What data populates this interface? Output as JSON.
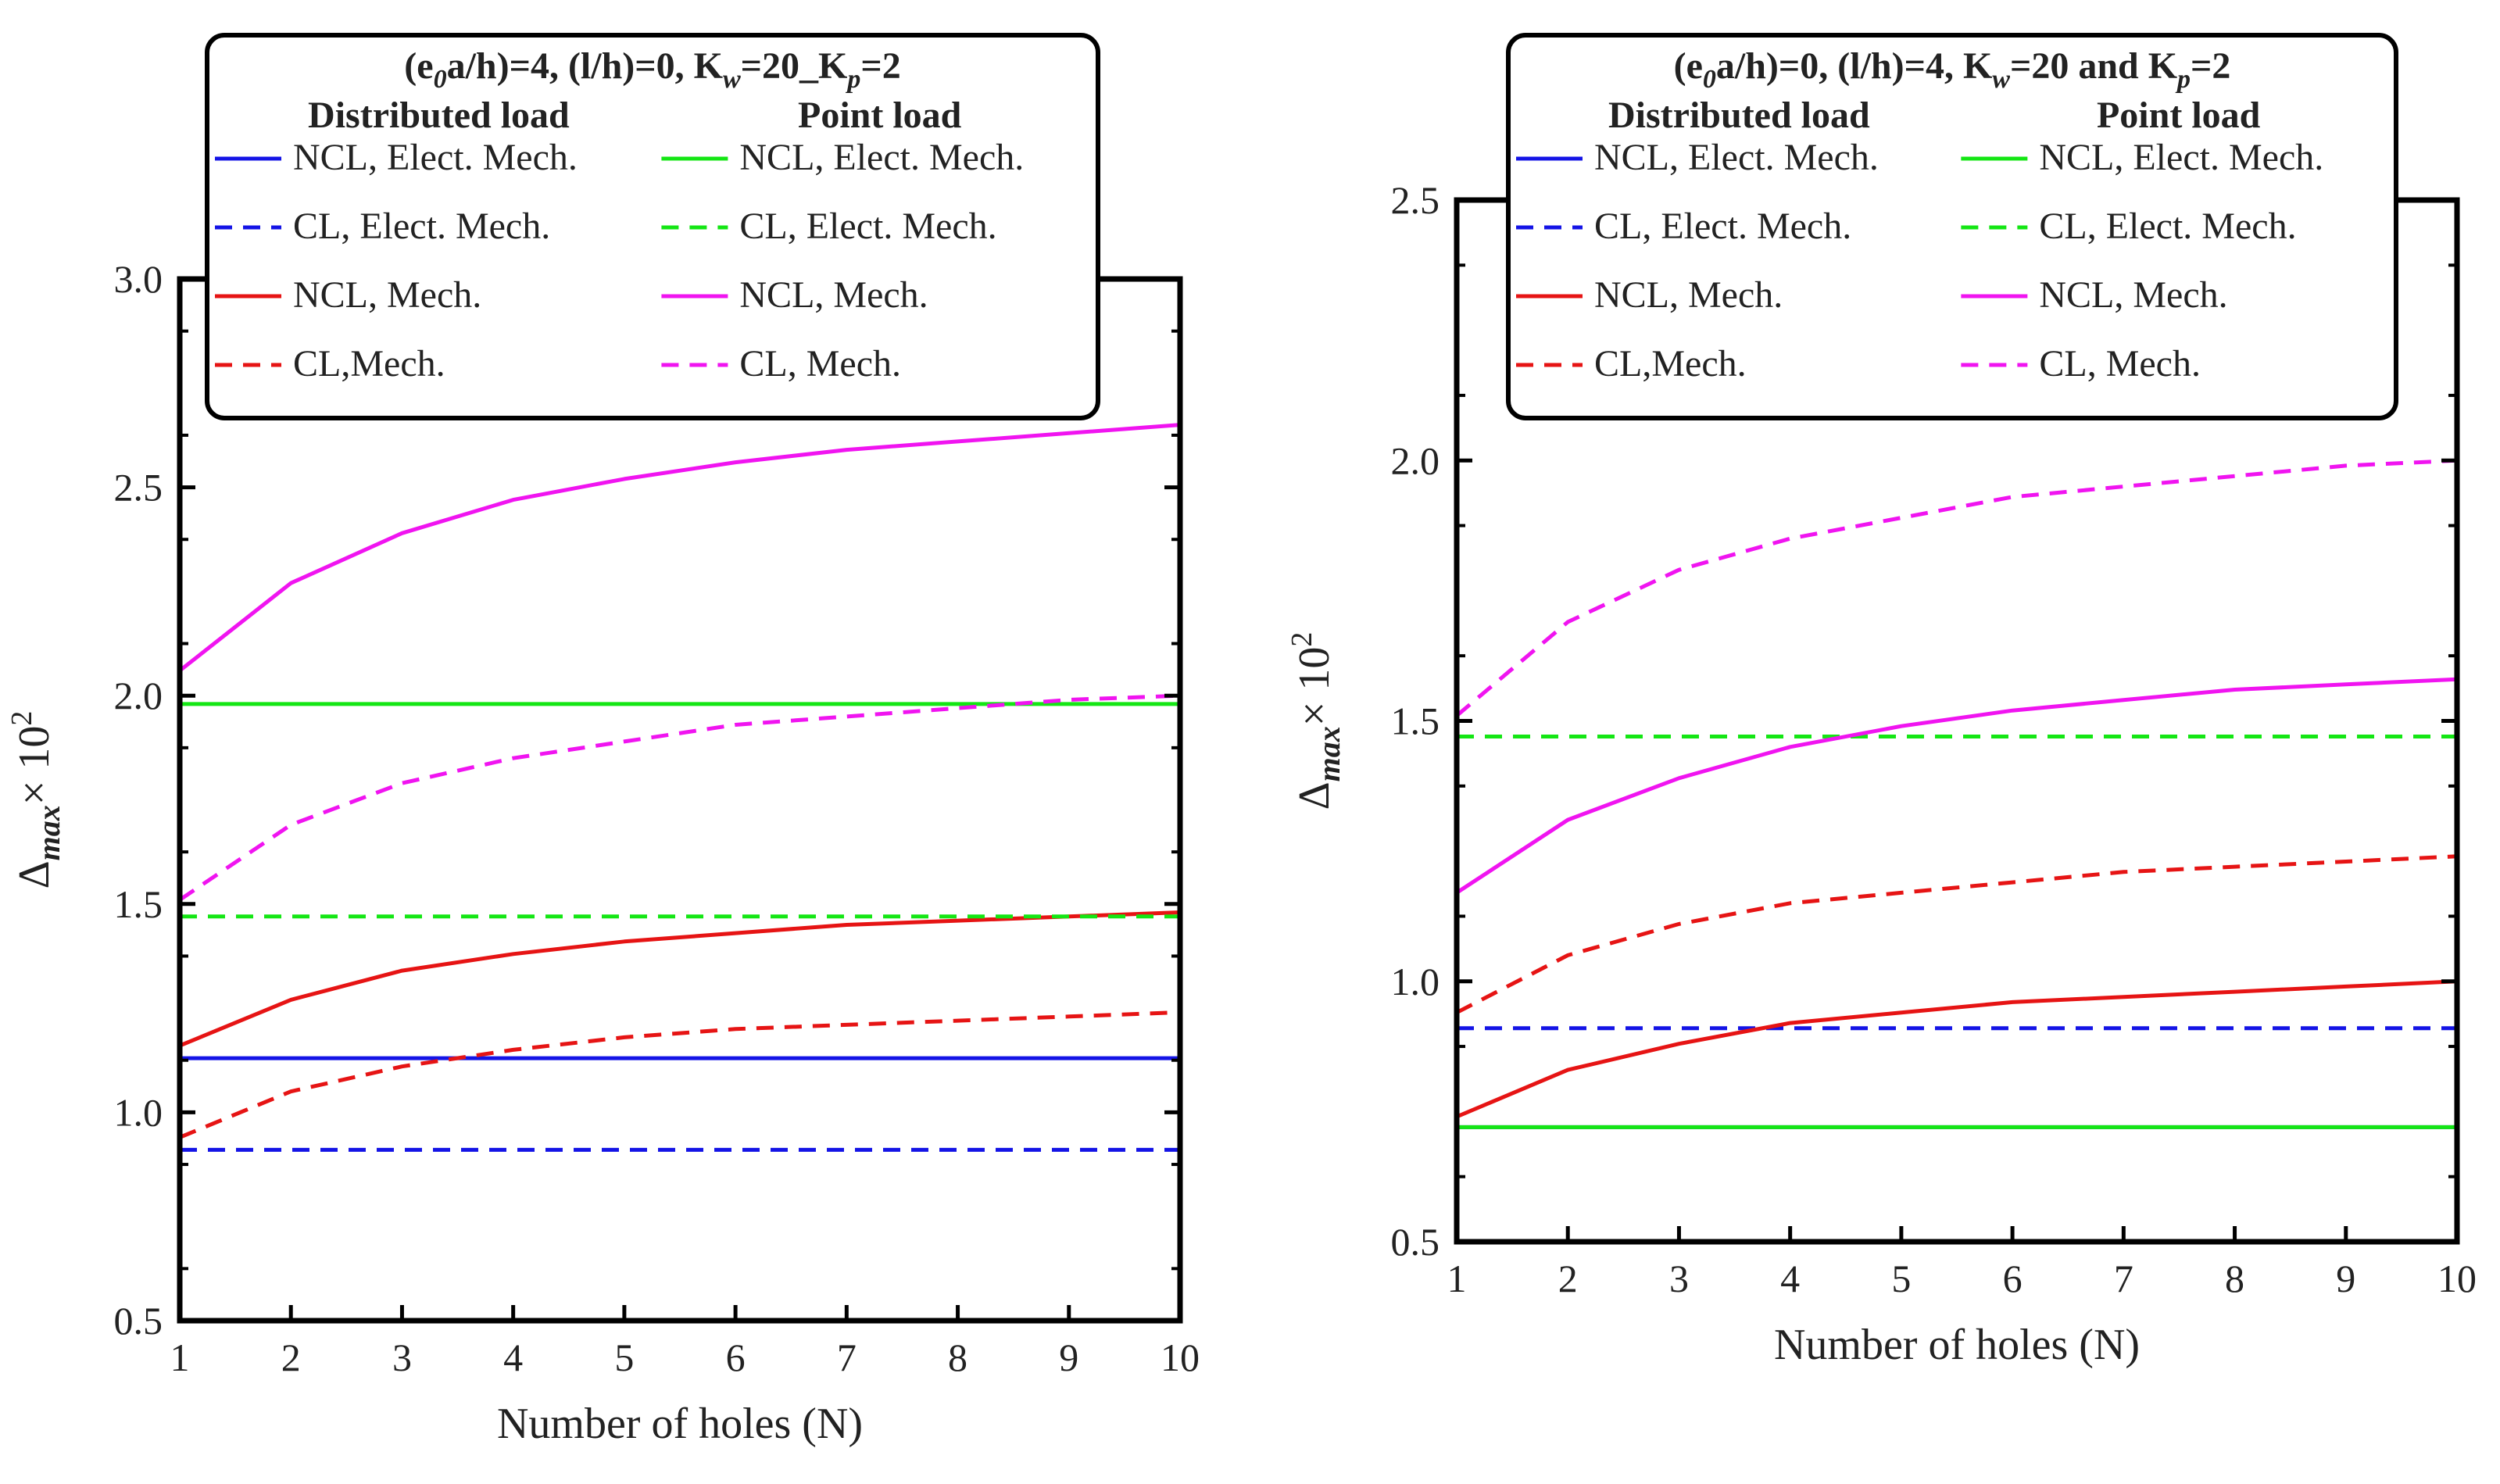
{
  "x_label": "Number of holes (N)",
  "y_label_symbol": "Δ",
  "y_label_sub": "max",
  "y_label_suffix": "× 10",
  "y_label_exp": "2",
  "chart_data": [
    {
      "type": "line",
      "title_parts": [
        "(e",
        "0",
        "a/h)=4, (l/h)=0, K",
        "w",
        "=20_K",
        "p",
        "=2"
      ],
      "legend_headers": [
        "Distributed load",
        "Point load"
      ],
      "xlabel": "Number of holes (N)",
      "ylabel": "Δmax× 10^2",
      "x": [
        1,
        2,
        3,
        4,
        5,
        6,
        7,
        8,
        9,
        10
      ],
      "xlim": [
        1,
        10
      ],
      "ylim": [
        0.5,
        3.0
      ],
      "yticks": [
        "0.5",
        "1.0",
        "1.5",
        "2.0",
        "2.5",
        "3.0"
      ],
      "xticks": [
        "1",
        "2",
        "3",
        "4",
        "5",
        "6",
        "7",
        "8",
        "9",
        "10"
      ],
      "series": [
        {
          "name": "NCL, Elect. Mech.",
          "group": "Distributed load",
          "color": "#1414e6",
          "dash": false,
          "values": [
            1.13,
            1.13,
            1.13,
            1.13,
            1.13,
            1.13,
            1.13,
            1.13,
            1.13,
            1.13
          ]
        },
        {
          "name": "CL, Elect. Mech.",
          "group": "Distributed load",
          "color": "#1414e6",
          "dash": true,
          "values": [
            0.91,
            0.91,
            0.91,
            0.91,
            0.91,
            0.91,
            0.91,
            0.91,
            0.91,
            0.91
          ]
        },
        {
          "name": "NCL, Mech.",
          "group": "Distributed load",
          "color": "#e61414",
          "dash": false,
          "values": [
            1.16,
            1.27,
            1.34,
            1.38,
            1.41,
            1.43,
            1.45,
            1.46,
            1.47,
            1.48
          ]
        },
        {
          "name": "CL,Mech.",
          "group": "Distributed load",
          "color": "#e61414",
          "dash": true,
          "values": [
            0.94,
            1.05,
            1.11,
            1.15,
            1.18,
            1.2,
            1.21,
            1.22,
            1.23,
            1.24
          ]
        },
        {
          "name": "NCL, Elect. Mech.",
          "group": "Point load",
          "color": "#14e614",
          "dash": false,
          "values": [
            1.98,
            1.98,
            1.98,
            1.98,
            1.98,
            1.98,
            1.98,
            1.98,
            1.98,
            1.98
          ]
        },
        {
          "name": "CL, Elect. Mech.",
          "group": "Point load",
          "color": "#14e614",
          "dash": true,
          "values": [
            1.47,
            1.47,
            1.47,
            1.47,
            1.47,
            1.47,
            1.47,
            1.47,
            1.47,
            1.47
          ]
        },
        {
          "name": "NCL, Mech.",
          "group": "Point load",
          "color": "#f014f0",
          "dash": false,
          "values": [
            2.06,
            2.27,
            2.39,
            2.47,
            2.52,
            2.56,
            2.59,
            2.61,
            2.63,
            2.65
          ]
        },
        {
          "name": "CL, Mech.",
          "group": "Point load",
          "color": "#f014f0",
          "dash": true,
          "values": [
            1.51,
            1.69,
            1.79,
            1.85,
            1.89,
            1.93,
            1.95,
            1.97,
            1.99,
            2.0
          ]
        }
      ]
    },
    {
      "type": "line",
      "title_parts": [
        "(e",
        "0",
        "a/h)=0, (l/h)=4, K",
        "w",
        "=20 and K",
        "p",
        "=2"
      ],
      "legend_headers": [
        "Distributed load",
        "Point load"
      ],
      "xlabel": "Number of holes (N)",
      "ylabel": "Δmax× 10^2",
      "x": [
        1,
        2,
        3,
        4,
        5,
        6,
        7,
        8,
        9,
        10
      ],
      "xlim": [
        1,
        10
      ],
      "ylim": [
        0.5,
        2.5
      ],
      "yticks": [
        "0.5",
        "1.0",
        "1.5",
        "2.0",
        "2.5"
      ],
      "xticks": [
        "1",
        "2",
        "3",
        "4",
        "5",
        "6",
        "7",
        "8",
        "9",
        "10"
      ],
      "series": [
        {
          "name": "NCL, Elect. Mech.",
          "group": "Distributed load",
          "color": "#1414e6",
          "dash": false,
          "values": [
            0.72,
            0.72,
            0.72,
            0.72,
            0.72,
            0.72,
            0.72,
            0.72,
            0.72,
            0.72
          ]
        },
        {
          "name": "CL, Elect. Mech.",
          "group": "Distributed load",
          "color": "#1414e6",
          "dash": true,
          "values": [
            0.91,
            0.91,
            0.91,
            0.91,
            0.91,
            0.91,
            0.91,
            0.91,
            0.91,
            0.91
          ]
        },
        {
          "name": "NCL, Mech.",
          "group": "Distributed load",
          "color": "#e61414",
          "dash": false,
          "values": [
            0.74,
            0.83,
            0.88,
            0.92,
            0.94,
            0.96,
            0.97,
            0.98,
            0.99,
            1.0
          ]
        },
        {
          "name": "CL,Mech.",
          "group": "Distributed load",
          "color": "#e61414",
          "dash": true,
          "values": [
            0.94,
            1.05,
            1.11,
            1.15,
            1.17,
            1.19,
            1.21,
            1.22,
            1.23,
            1.24
          ]
        },
        {
          "name": "NCL, Elect. Mech.",
          "group": "Point load",
          "color": "#14e614",
          "dash": false,
          "values": [
            0.72,
            0.72,
            0.72,
            0.72,
            0.72,
            0.72,
            0.72,
            0.72,
            0.72,
            0.72
          ]
        },
        {
          "name": "CL, Elect. Mech.",
          "group": "Point load",
          "color": "#14e614",
          "dash": true,
          "values": [
            1.47,
            1.47,
            1.47,
            1.47,
            1.47,
            1.47,
            1.47,
            1.47,
            1.47,
            1.47
          ]
        },
        {
          "name": "NCL, Mech.",
          "group": "Point load",
          "color": "#f014f0",
          "dash": false,
          "values": [
            1.17,
            1.31,
            1.39,
            1.45,
            1.49,
            1.52,
            1.54,
            1.56,
            1.57,
            1.58
          ]
        },
        {
          "name": "CL, Mech.",
          "group": "Point load",
          "color": "#f014f0",
          "dash": true,
          "values": [
            1.51,
            1.69,
            1.79,
            1.85,
            1.89,
            1.93,
            1.95,
            1.97,
            1.99,
            2.0
          ]
        }
      ]
    }
  ]
}
